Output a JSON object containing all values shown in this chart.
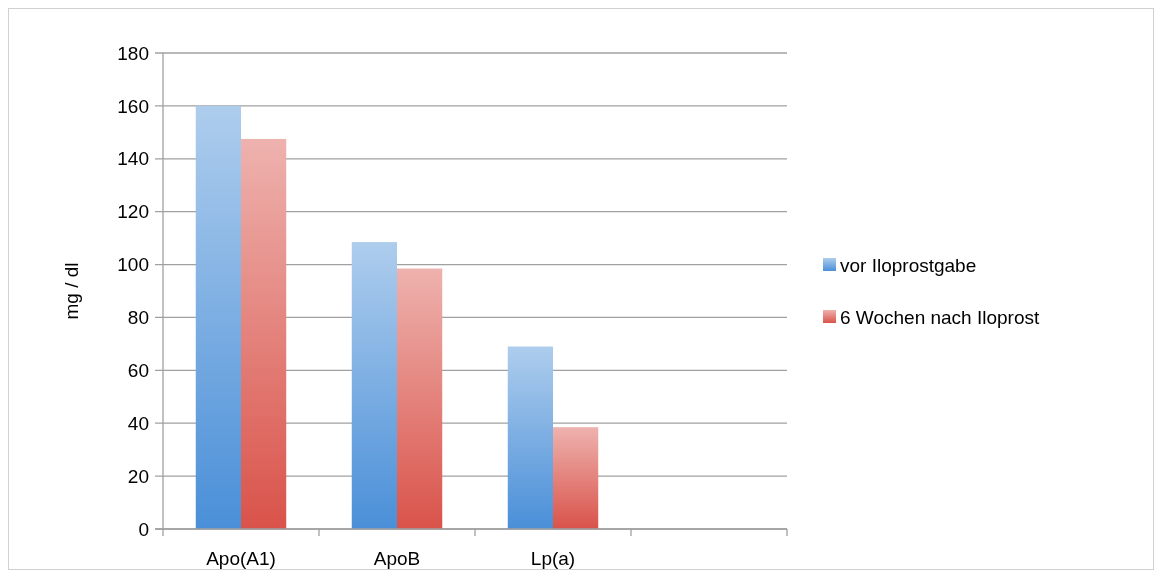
{
  "chart_data": {
    "type": "bar",
    "ylabel": "mg / dl",
    "categories": [
      "Apo(A1)",
      "ApoB",
      "Lp(a)",
      null
    ],
    "series": [
      {
        "name": "vor Iloprostgabe",
        "color": "#4a8fd8",
        "values": [
          160,
          108.5,
          69,
          null
        ]
      },
      {
        "name": "6 Wochen nach Iloprost",
        "color": "#d9534a",
        "values": [
          147.5,
          98.5,
          38.5,
          null
        ]
      }
    ],
    "ylim": [
      0,
      180
    ],
    "yticks": [
      0,
      20,
      40,
      60,
      80,
      100,
      120,
      140,
      160,
      180
    ],
    "grid": "y",
    "legend": "right"
  }
}
